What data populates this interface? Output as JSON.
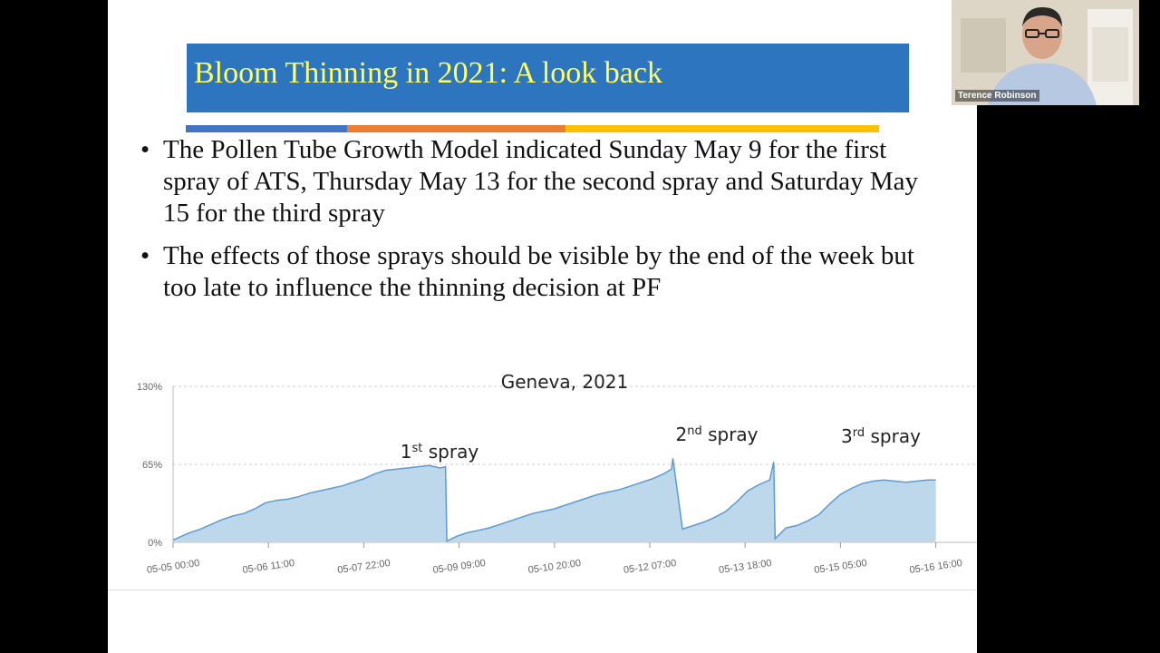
{
  "slide": {
    "title": "Bloom Thinning in 2021: A look back",
    "bullets": [
      "The Pollen Tube Growth Model indicated Sunday May 9 for the first spray of ATS, Thursday May 13 for the second spray and Saturday May 15 for the third spray",
      "The effects of those sprays should be visible by the end of the week but too late to influence the thinning decision at PF"
    ],
    "bullet_symbol": "•",
    "accent_colors": [
      "#4472c4",
      "#ed7d31",
      "#ffc000"
    ]
  },
  "chart_data": {
    "type": "area",
    "title": "Geneva, 2021",
    "xlabel": "",
    "ylabel": "",
    "ylim": [
      0,
      130
    ],
    "y_ticks": [
      "0%",
      "65%",
      "130%"
    ],
    "x_ticks": [
      "05-05 00:00",
      "05-06 11:00",
      "05-07 22:00",
      "05-09 09:00",
      "05-10 20:00",
      "05-12 07:00",
      "05-13 18:00",
      "05-15 05:00",
      "05-16 16:00"
    ],
    "x_unit_hours_per_tick": 35,
    "series": [
      {
        "values_hours": [
          0,
          3,
          6,
          10,
          14,
          18,
          22,
          26,
          30,
          34,
          38,
          42,
          46,
          50,
          54,
          58,
          62,
          66,
          70,
          74,
          78,
          82,
          86,
          90,
          94,
          98,
          100,
          100.5,
          104,
          108,
          112,
          116,
          120,
          124,
          128,
          132,
          136,
          140,
          144,
          148,
          152,
          156,
          160,
          164,
          168,
          172,
          176,
          180,
          183,
          183.5,
          187,
          191,
          195,
          199,
          203,
          207,
          211,
          215,
          219,
          220.5,
          221,
          225,
          229,
          233,
          237,
          241,
          245,
          249,
          253,
          257,
          261,
          265,
          269,
          273,
          277,
          280
        ],
        "values_pct": [
          2,
          5,
          8,
          11,
          15,
          19,
          22,
          24,
          28,
          33,
          35,
          36,
          38,
          41,
          43,
          45,
          47,
          50,
          53,
          57,
          60,
          61,
          62,
          63,
          64,
          62,
          63,
          1,
          5,
          8,
          10,
          12,
          15,
          18,
          21,
          24,
          26,
          28,
          31,
          34,
          37,
          40,
          42,
          44,
          47,
          50,
          53,
          57,
          61,
          70,
          11,
          14,
          17,
          21,
          26,
          34,
          43,
          48,
          52,
          67,
          3,
          12,
          14,
          18,
          23,
          32,
          40,
          45,
          49,
          51,
          52,
          51,
          50,
          51,
          52,
          52
        ]
      }
    ],
    "annotations": [
      {
        "base": "1",
        "sup": "st",
        "text": " spray"
      },
      {
        "base": "2",
        "sup": "nd",
        "text": " spray"
      },
      {
        "base": "3",
        "sup": "rd",
        "text": " spray"
      }
    ],
    "fill_color": "#bcd8ea",
    "line_color": "#5b9bd5",
    "grid": true
  },
  "webcam": {
    "participant_name": "Terence Robinson"
  }
}
